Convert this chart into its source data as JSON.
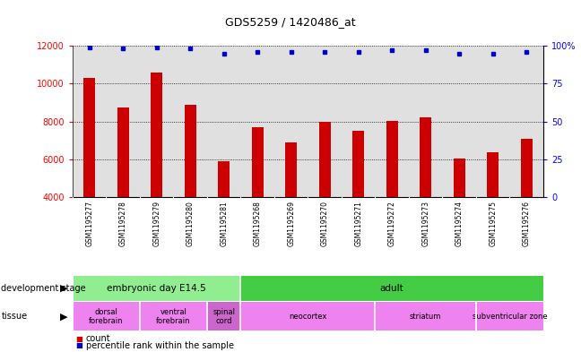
{
  "title": "GDS5259 / 1420486_at",
  "samples": [
    "GSM1195277",
    "GSM1195278",
    "GSM1195279",
    "GSM1195280",
    "GSM1195281",
    "GSM1195268",
    "GSM1195269",
    "GSM1195270",
    "GSM1195271",
    "GSM1195272",
    "GSM1195273",
    "GSM1195274",
    "GSM1195275",
    "GSM1195276"
  ],
  "counts": [
    10300,
    8750,
    10600,
    8900,
    5900,
    7700,
    6900,
    8000,
    7500,
    8050,
    8200,
    6050,
    6350,
    7100
  ],
  "percentiles": [
    99,
    98,
    99,
    98,
    95,
    96,
    96,
    96,
    96,
    97,
    97,
    95,
    95,
    96
  ],
  "bar_color": "#CC0000",
  "dot_color": "#0000CC",
  "ylim_left": [
    4000,
    12000
  ],
  "ylim_right": [
    0,
    100
  ],
  "yticks_left": [
    4000,
    6000,
    8000,
    10000,
    12000
  ],
  "yticks_right": [
    0,
    25,
    50,
    75,
    100
  ],
  "gridlines": [
    6000,
    8000,
    10000,
    12000
  ],
  "dev_stage_groups": [
    {
      "label": "embryonic day E14.5",
      "start": 0,
      "end": 5,
      "color": "#90EE90"
    },
    {
      "label": "adult",
      "start": 5,
      "end": 14,
      "color": "#44CC44"
    }
  ],
  "tissue_groups": [
    {
      "label": "dorsal\nforebrain",
      "start": 0,
      "end": 2,
      "color": "#EE82EE"
    },
    {
      "label": "ventral\nforebrain",
      "start": 2,
      "end": 4,
      "color": "#EE82EE"
    },
    {
      "label": "spinal\ncord",
      "start": 4,
      "end": 5,
      "color": "#CC66CC"
    },
    {
      "label": "neocortex",
      "start": 5,
      "end": 9,
      "color": "#EE82EE"
    },
    {
      "label": "striatum",
      "start": 9,
      "end": 12,
      "color": "#EE82EE"
    },
    {
      "label": "subventricular zone",
      "start": 12,
      "end": 14,
      "color": "#EE82EE"
    }
  ],
  "col_bg_even": "#E8E8E8",
  "col_bg_odd": "#D8D8D8",
  "plot_bg": "#FFFFFF"
}
